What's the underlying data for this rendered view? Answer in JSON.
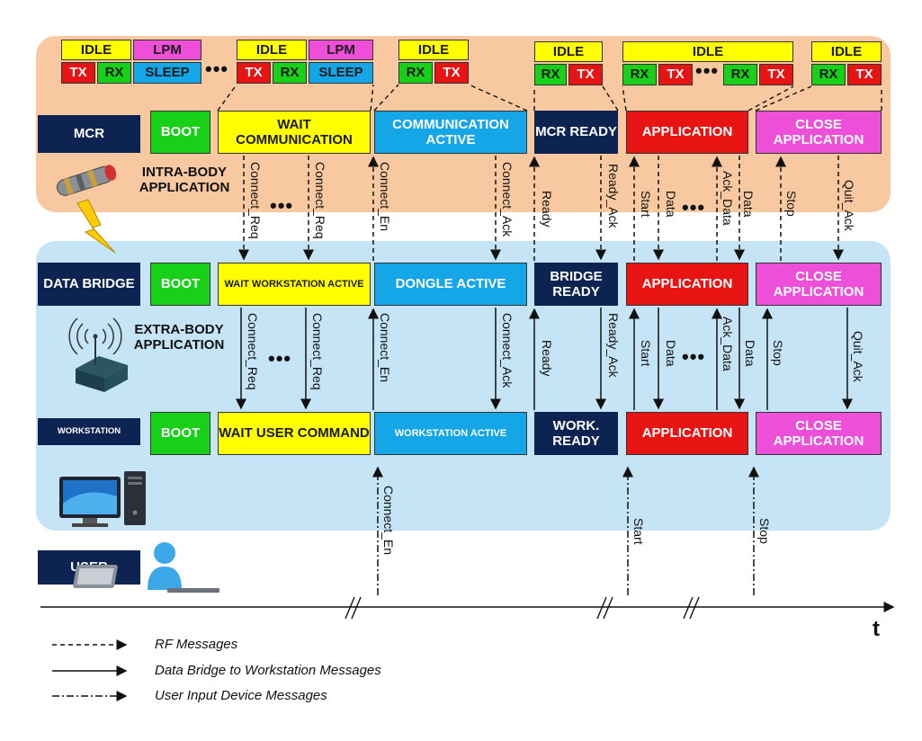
{
  "panels": {
    "intra_label": "INTRA-BODY\nAPPLICATION",
    "extra_label": "EXTRA-BODY\nAPPLICATION"
  },
  "rows": {
    "mcr": {
      "label": "MCR",
      "states": [
        "BOOT",
        "WAIT COMMUNICATION",
        "COMMUNICATION ACTIVE",
        "MCR READY",
        "APPLICATION",
        "CLOSE APPLICATION"
      ]
    },
    "bridge": {
      "label": "DATA BRIDGE",
      "states": [
        "BOOT",
        "WAIT WORKSTATION ACTIVE",
        "DONGLE ACTIVE",
        "BRIDGE READY",
        "APPLICATION",
        "CLOSE APPLICATION"
      ]
    },
    "workstation": {
      "label": "WORKSTATION",
      "states": [
        "BOOT",
        "WAIT USER COMMAND",
        "WORKSTATION ACTIVE",
        "WORK. READY",
        "APPLICATION",
        "CLOSE APPLICATION"
      ]
    },
    "user": {
      "label": "USER"
    }
  },
  "substates": {
    "idle": "IDLE",
    "lpm": "LPM",
    "tx": "TX",
    "rx": "RX",
    "sleep": "SLEEP",
    "dots": "•••"
  },
  "messages": {
    "mcr_bridge": [
      "Connect_Req",
      "Connect_Req",
      "Connect_En",
      "Connect_Ack",
      "Ready",
      "Ready_Ack",
      "Start",
      "Data",
      "Ack_Data",
      "Data",
      "Stop",
      "Quit_Ack"
    ],
    "bridge_ws": [
      "Connect_Req",
      "Connect_Req",
      "Connect_En",
      "Connect_Ack",
      "Ready",
      "Ready_Ack",
      "Start",
      "Data",
      "Ack_Data",
      "Data",
      "Stop",
      "Quit_Ack"
    ],
    "user_ws": [
      "Connect_En",
      "Start",
      "Stop"
    ]
  },
  "axis": {
    "label": "t"
  },
  "legend": [
    {
      "style": "dashed",
      "label": "RF Messages"
    },
    {
      "style": "solid",
      "label": "Data Bridge to Workstation Messages"
    },
    {
      "style": "dashdot",
      "label": "User Input Device Messages"
    }
  ],
  "icons": [
    "capsule-icon",
    "lightning-icon",
    "wireless-router-icon",
    "desktop-computer-icon",
    "user-icon"
  ],
  "colors": {
    "mcr_panel": "#f8c9a0",
    "extra_panel": "#c5e4f5",
    "idle": "#ffff00",
    "tx": "#e81414",
    "rx": "#19d019",
    "lpm": "#ee4fd8",
    "sleep": "#15a6e8"
  }
}
